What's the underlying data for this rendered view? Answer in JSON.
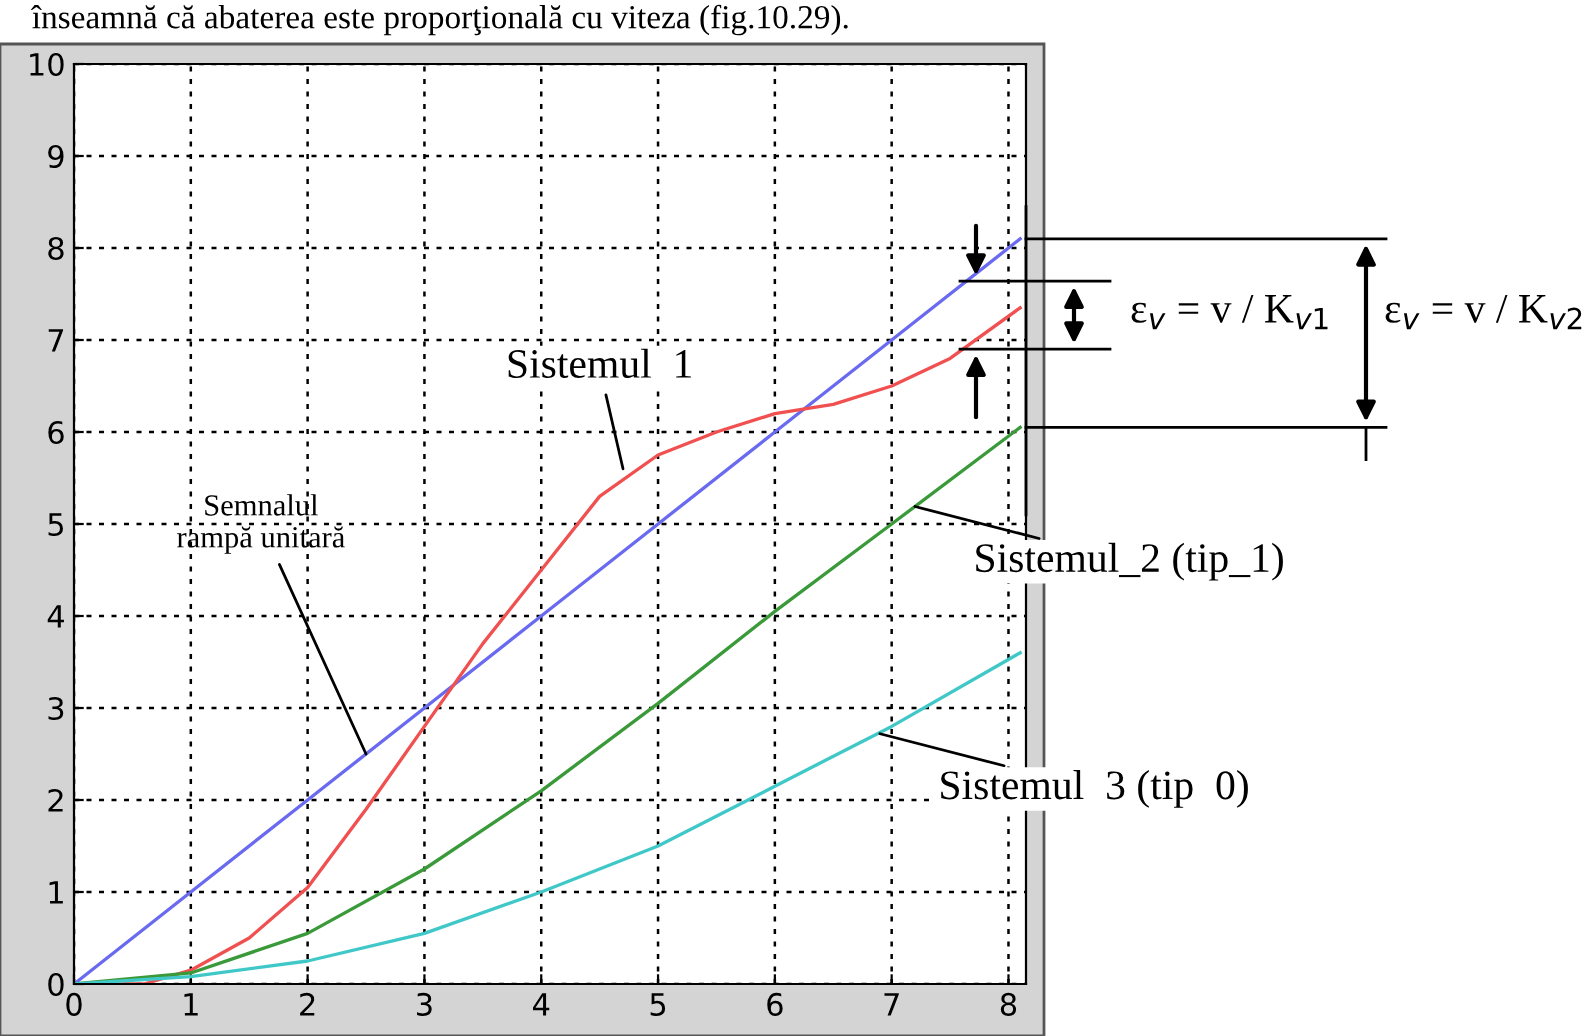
{
  "chart_data": {
    "type": "line",
    "xlim": [
      0,
      8.15
    ],
    "ylim": [
      0,
      10
    ],
    "xticks": [
      0,
      1,
      2,
      3,
      4,
      5,
      6,
      7,
      8
    ],
    "yticks": [
      0,
      1,
      2,
      3,
      4,
      5,
      6,
      7,
      8,
      9,
      10
    ],
    "grid": true,
    "line_style": "solid",
    "marker": "none",
    "series": [
      {
        "color": "#6a6af0",
        "x": [
          0,
          1,
          2,
          3,
          4,
          5,
          6,
          7,
          8.1
        ],
        "values": [
          0,
          1,
          2,
          3,
          4,
          5,
          6,
          7,
          8.1
        ]
      },
      {
        "color": "#f05050",
        "x": [
          0,
          0.6,
          1,
          1.5,
          2,
          2.5,
          3,
          3.5,
          4,
          4.5,
          5,
          5.5,
          6,
          6.5,
          7,
          7.5,
          8.1
        ],
        "values": [
          0,
          0,
          0.15,
          0.5,
          1.05,
          1.9,
          2.8,
          3.7,
          4.5,
          5.3,
          5.75,
          6.0,
          6.2,
          6.3,
          6.5,
          6.8,
          7.35
        ]
      },
      {
        "color": "#3a9a3a",
        "x": [
          0,
          1,
          2,
          3,
          4,
          5,
          6,
          7,
          8.1
        ],
        "values": [
          0,
          0.12,
          0.55,
          1.25,
          2.1,
          3.05,
          4.05,
          5.0,
          6.05
        ]
      },
      {
        "color": "#40c8c8",
        "x": [
          0,
          1,
          2,
          3,
          4,
          5,
          6,
          7,
          8.1
        ],
        "values": [
          0,
          0.08,
          0.25,
          0.55,
          1.0,
          1.5,
          2.15,
          2.8,
          3.6
        ]
      }
    ],
    "annotations": [
      "înseamnă că abaterea este proporţională cu viteza (fig.10.29).",
      {
        "text": "Sistemul  1",
        "x": 4.7,
        "y": 5.6
      },
      {
        "text": "Semnalul\nrampă unitară",
        "x": 2.5,
        "y": 2.5
      },
      {
        "text": "Sistemul_2 (tip_1)",
        "x": 7.2,
        "y": 5.19
      },
      {
        "text": "Sistemul  3 (tip  0)",
        "x": 6.9,
        "y": 2.72
      },
      {
        "text": "ε$_{v}$ = v / K$_{v1}$",
        "x": 8.1,
        "y": 7.35
      },
      "ε$_{v}$ = v / K$_{v2}$"
    ]
  }
}
